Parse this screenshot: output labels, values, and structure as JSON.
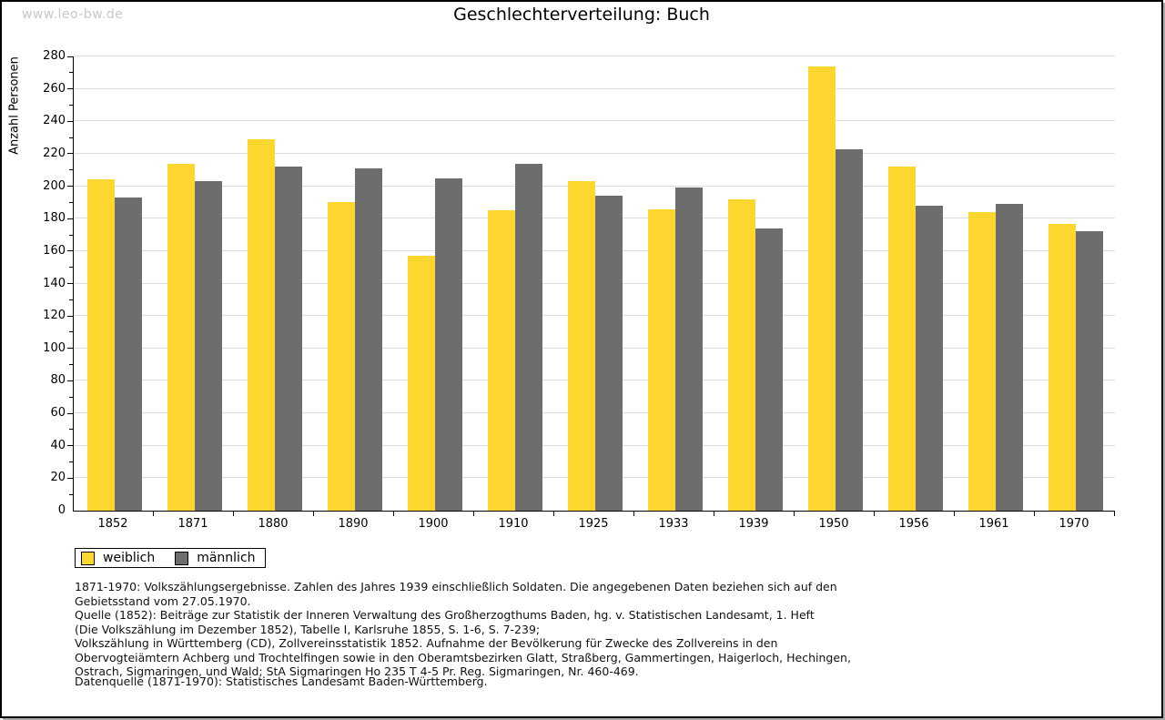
{
  "watermark": "www.leo-bw.de",
  "title": "Geschlechterverteilung: Buch",
  "chart_data": {
    "type": "bar",
    "title": "Geschlechterverteilung: Buch",
    "xlabel": "",
    "ylabel": "Anzahl Personen",
    "ylim": [
      0,
      280
    ],
    "ytick_step": 20,
    "ytick_minor_step": 10,
    "grid": "horizontal",
    "legend_position": "bottom-left",
    "categories": [
      "1852",
      "1871",
      "1880",
      "1890",
      "1900",
      "1910",
      "1925",
      "1933",
      "1939",
      "1950",
      "1956",
      "1961",
      "1970"
    ],
    "series": [
      {
        "name": "weiblich",
        "color": "#FDD730",
        "values": [
          204,
          214,
          229,
          190,
          157,
          185,
          203,
          186,
          192,
          274,
          212,
          184,
          177
        ]
      },
      {
        "name": "männlich",
        "color": "#6D6D6D",
        "values": [
          193,
          203,
          212,
          211,
          205,
          214,
          194,
          199,
          174,
          223,
          188,
          189,
          172
        ]
      }
    ]
  },
  "legend": {
    "items": [
      {
        "label": "weiblich",
        "color": "#FDD730"
      },
      {
        "label": "männlich",
        "color": "#6D6D6D"
      }
    ]
  },
  "footer": {
    "lines": [
      "1871-1970: Volkszählungsergebnisse. Zahlen des Jahres 1939 einschließlich Soldaten. Die angegebenen Daten beziehen sich auf den",
      "Gebietsstand vom 27.05.1970.",
      "Quelle (1852): Beiträge zur Statistik der Inneren Verwaltung des Großherzogthums Baden, hg. v. Statistischen Landesamt, 1. Heft",
      "(Die Volkszählung im Dezember 1852), Tabelle I, Karlsruhe 1855, S. 1-6, S. 7-239;",
      "Volkszählung in Württemberg (CD), Zollvereinsstatistik 1852. Aufnahme der Bevölkerung für Zwecke des Zollvereins in den",
      "Obervogteiämtern Achberg und Trochtelfingen sowie in den Oberamtsbezirken Glatt, Straßberg, Gammertingen, Haigerloch, Hechingen,",
      "Ostrach, Sigmaringen, und Wald; StA Sigmaringen Ho 235 T 4-5 Pr. Reg. Sigmaringen, Nr. 460-469."
    ],
    "datasource": "Datenquelle (1871-1970): Statistisches Landesamt Baden-Württemberg."
  },
  "colors": {
    "weiblich": "#FDD730",
    "männlich": "#6D6D6D",
    "gridline": "#dddddd",
    "watermark": "#c8c8c8",
    "frame_border": "#000000"
  }
}
